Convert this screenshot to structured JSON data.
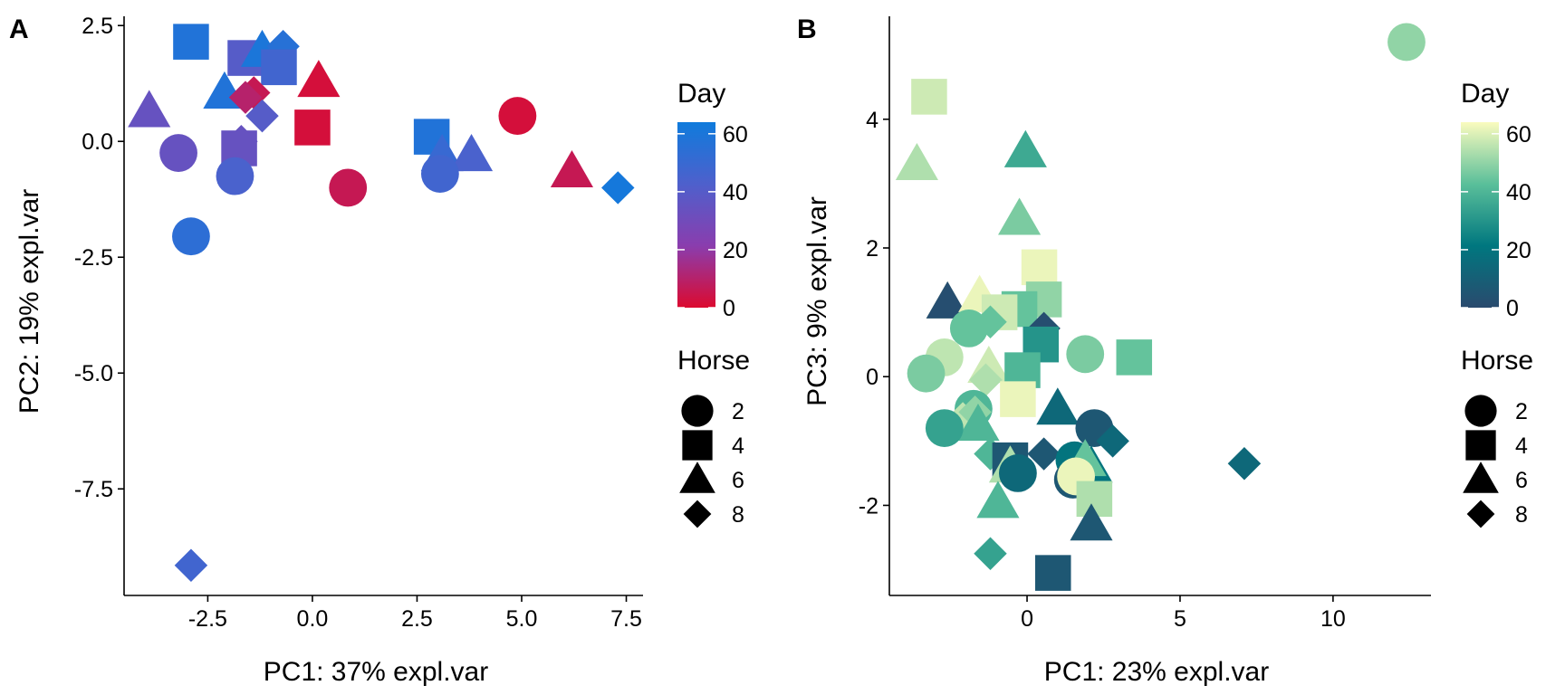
{
  "chart_data": [
    {
      "type": "scatter",
      "panel_label": "A",
      "xlabel": "PC1: 37% expl.var",
      "ylabel": "PC2: 19% expl.var",
      "xlim": [
        -4.5,
        7.9
      ],
      "ylim": [
        -9.8,
        2.7
      ],
      "xticks": [
        -2.5,
        0.0,
        2.5,
        5.0,
        7.5
      ],
      "xtick_labels": [
        "-2.5",
        "0.0",
        "2.5",
        "5.0",
        "7.5"
      ],
      "yticks": [
        2.5,
        0.0,
        -2.5,
        -5.0,
        -7.5
      ],
      "ytick_labels": [
        "2.5",
        "0.0",
        "-2.5",
        "-5.0",
        "-7.5"
      ],
      "grid": false,
      "color_scale": {
        "title": "Day",
        "min": 0,
        "max": 64,
        "ticks": [
          60,
          40,
          20,
          0
        ],
        "tick_labels": [
          "60",
          "40",
          "20",
          "0"
        ],
        "colors": [
          "#DC0A2F",
          "#8A3DAE",
          "#4E60CC",
          "#0F7BDC"
        ]
      },
      "shape_legend": {
        "title": "Horse",
        "entries": [
          {
            "label": "2",
            "shape": "circle"
          },
          {
            "label": "4",
            "shape": "square"
          },
          {
            "label": "6",
            "shape": "triangle"
          },
          {
            "label": "8",
            "shape": "diamond"
          }
        ]
      },
      "points": [
        {
          "x": -2.9,
          "y": 2.15,
          "horse": 4,
          "day": 58
        },
        {
          "x": -1.6,
          "y": 1.8,
          "horse": 4,
          "day": 40
        },
        {
          "x": -1.2,
          "y": 1.95,
          "horse": 6,
          "day": 60
        },
        {
          "x": -0.7,
          "y": 2.05,
          "horse": 8,
          "day": 56
        },
        {
          "x": -0.8,
          "y": 1.6,
          "horse": 4,
          "day": 47
        },
        {
          "x": -2.1,
          "y": 1.05,
          "horse": 6,
          "day": 58
        },
        {
          "x": 0.15,
          "y": 1.3,
          "horse": 6,
          "day": 2
        },
        {
          "x": -1.4,
          "y": 1.05,
          "horse": 8,
          "day": 6
        },
        {
          "x": -1.6,
          "y": 0.95,
          "horse": 8,
          "day": 10
        },
        {
          "x": -3.9,
          "y": 0.65,
          "horse": 6,
          "day": 34
        },
        {
          "x": -1.2,
          "y": 0.55,
          "horse": 8,
          "day": 40
        },
        {
          "x": 0.0,
          "y": 0.3,
          "horse": 4,
          "day": 2
        },
        {
          "x": 4.9,
          "y": 0.55,
          "horse": 2,
          "day": 2
        },
        {
          "x": 2.85,
          "y": 0.1,
          "horse": 4,
          "day": 58
        },
        {
          "x": -1.7,
          "y": 0.0,
          "horse": 8,
          "day": 34
        },
        {
          "x": -1.75,
          "y": -0.15,
          "horse": 4,
          "day": 34
        },
        {
          "x": -3.2,
          "y": -0.25,
          "horse": 2,
          "day": 34
        },
        {
          "x": 3.1,
          "y": -0.3,
          "horse": 6,
          "day": 50
        },
        {
          "x": 3.8,
          "y": -0.3,
          "horse": 6,
          "day": 44
        },
        {
          "x": 3.05,
          "y": -0.7,
          "horse": 2,
          "day": 47
        },
        {
          "x": -1.85,
          "y": -0.75,
          "horse": 2,
          "day": 44
        },
        {
          "x": 0.85,
          "y": -1.0,
          "horse": 2,
          "day": 6
        },
        {
          "x": 6.2,
          "y": -0.65,
          "horse": 6,
          "day": 6
        },
        {
          "x": 7.3,
          "y": -1.0,
          "horse": 8,
          "day": 62
        },
        {
          "x": -2.9,
          "y": -2.05,
          "horse": 2,
          "day": 54
        },
        {
          "x": -2.9,
          "y": -9.15,
          "horse": 8,
          "day": 47
        }
      ]
    },
    {
      "type": "scatter",
      "panel_label": "B",
      "xlabel": "PC1: 23% expl.var",
      "ylabel": "PC3: 9% expl.var",
      "xlim": [
        -4.5,
        13.2
      ],
      "ylim": [
        -3.4,
        5.6
      ],
      "xticks": [
        0,
        5,
        10
      ],
      "xtick_labels": [
        "0",
        "5",
        "10"
      ],
      "yticks": [
        4,
        2,
        0,
        -2
      ],
      "ytick_labels": [
        "4",
        "2",
        "0",
        "-2"
      ],
      "grid": false,
      "color_scale": {
        "title": "Day",
        "min": 0,
        "max": 64,
        "ticks": [
          60,
          40,
          20,
          0
        ],
        "tick_labels": [
          "60",
          "40",
          "20",
          "0"
        ],
        "colors": [
          "#2A4A6E",
          "#00777F",
          "#5ABF9A",
          "#FAFBBE"
        ]
      },
      "shape_legend": {
        "title": "Horse",
        "entries": [
          {
            "label": "2",
            "shape": "circle"
          },
          {
            "label": "4",
            "shape": "square"
          },
          {
            "label": "6",
            "shape": "triangle"
          },
          {
            "label": "8",
            "shape": "diamond"
          }
        ]
      },
      "points": [
        {
          "x": 12.4,
          "y": 5.2,
          "horse": 2,
          "day": 50
        },
        {
          "x": -3.2,
          "y": 4.35,
          "horse": 4,
          "day": 58
        },
        {
          "x": -3.6,
          "y": 3.3,
          "horse": 6,
          "day": 54
        },
        {
          "x": -0.05,
          "y": 3.5,
          "horse": 6,
          "day": 36
        },
        {
          "x": -0.25,
          "y": 2.45,
          "horse": 6,
          "day": 47
        },
        {
          "x": 0.4,
          "y": 1.7,
          "horse": 4,
          "day": 62
        },
        {
          "x": 0.55,
          "y": 1.2,
          "horse": 4,
          "day": 50
        },
        {
          "x": -2.6,
          "y": 1.15,
          "horse": 6,
          "day": 58
        },
        {
          "x": -2.6,
          "y": 1.15,
          "horse": 6,
          "day": 2
        },
        {
          "x": -1.55,
          "y": 1.25,
          "horse": 6,
          "day": 62
        },
        {
          "x": -0.25,
          "y": 1.05,
          "horse": 4,
          "day": 44
        },
        {
          "x": -0.9,
          "y": 1.0,
          "horse": 4,
          "day": 58
        },
        {
          "x": -1.9,
          "y": 0.75,
          "horse": 2,
          "day": 44
        },
        {
          "x": -1.2,
          "y": 0.85,
          "horse": 8,
          "day": 44
        },
        {
          "x": 0.55,
          "y": 0.75,
          "horse": 8,
          "day": 2
        },
        {
          "x": 0.45,
          "y": 0.5,
          "horse": 4,
          "day": 30
        },
        {
          "x": -2.7,
          "y": 0.3,
          "horse": 2,
          "day": 56
        },
        {
          "x": 1.9,
          "y": 0.35,
          "horse": 2,
          "day": 47
        },
        {
          "x": 3.5,
          "y": 0.3,
          "horse": 4,
          "day": 44
        },
        {
          "x": -1.25,
          "y": 0.15,
          "horse": 6,
          "day": 58
        },
        {
          "x": -0.15,
          "y": 0.1,
          "horse": 4,
          "day": 40
        },
        {
          "x": -3.3,
          "y": 0.05,
          "horse": 2,
          "day": 47
        },
        {
          "x": -1.35,
          "y": -0.05,
          "horse": 8,
          "day": 54
        },
        {
          "x": -0.3,
          "y": -0.35,
          "horse": 4,
          "day": 62
        },
        {
          "x": -1.75,
          "y": -0.5,
          "horse": 2,
          "day": 40
        },
        {
          "x": -2.1,
          "y": -0.65,
          "horse": 8,
          "day": 56
        },
        {
          "x": -1.7,
          "y": -0.55,
          "horse": 8,
          "day": 50
        },
        {
          "x": 1.0,
          "y": -0.5,
          "horse": 6,
          "day": 14
        },
        {
          "x": -1.6,
          "y": -0.75,
          "horse": 6,
          "day": 40
        },
        {
          "x": -2.7,
          "y": -0.8,
          "horse": 2,
          "day": 34
        },
        {
          "x": 2.2,
          "y": -0.8,
          "horse": 2,
          "day": 6
        },
        {
          "x": 2.8,
          "y": -1.0,
          "horse": 8,
          "day": 14
        },
        {
          "x": -1.2,
          "y": -1.2,
          "horse": 8,
          "day": 40
        },
        {
          "x": 0.55,
          "y": -1.2,
          "horse": 8,
          "day": 6
        },
        {
          "x": -0.55,
          "y": -1.3,
          "horse": 4,
          "day": 6
        },
        {
          "x": -0.55,
          "y": -1.4,
          "horse": 6,
          "day": 54
        },
        {
          "x": 1.55,
          "y": -1.3,
          "horse": 2,
          "day": 20
        },
        {
          "x": 2.1,
          "y": -1.4,
          "horse": 6,
          "day": 20
        },
        {
          "x": 1.9,
          "y": -1.3,
          "horse": 6,
          "day": 44
        },
        {
          "x": -0.3,
          "y": -1.5,
          "horse": 2,
          "day": 14
        },
        {
          "x": 1.5,
          "y": -1.6,
          "horse": 2,
          "day": 6
        },
        {
          "x": 1.6,
          "y": -1.55,
          "horse": 2,
          "day": 62
        },
        {
          "x": 7.1,
          "y": -1.35,
          "horse": 8,
          "day": 14
        },
        {
          "x": 2.2,
          "y": -1.9,
          "horse": 4,
          "day": 54
        },
        {
          "x": -0.95,
          "y": -1.95,
          "horse": 6,
          "day": 40
        },
        {
          "x": 2.1,
          "y": -2.3,
          "horse": 6,
          "day": 6
        },
        {
          "x": -1.2,
          "y": -2.75,
          "horse": 8,
          "day": 34
        },
        {
          "x": 0.85,
          "y": -3.05,
          "horse": 4,
          "day": 6
        }
      ]
    }
  ]
}
